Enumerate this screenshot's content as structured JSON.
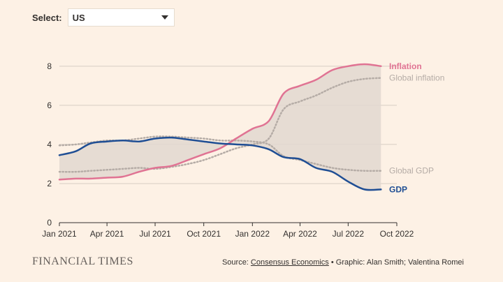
{
  "control": {
    "select_label": "Select:",
    "selected_value": "US"
  },
  "colors": {
    "inflation": "#e07393",
    "gdp": "#1f4e94",
    "global": "#b5aca6",
    "band": "#e2d8d0",
    "axis": "#33302e",
    "grid": "#d7cdc3"
  },
  "chart_data": {
    "type": "line",
    "ylim": [
      0,
      8.6
    ],
    "yticks": [
      0,
      2,
      4,
      6,
      8
    ],
    "xticks": [
      "2021-01-01",
      "2021-04-01",
      "2021-07-01",
      "2021-10-01",
      "2022-01-01",
      "2022-04-01",
      "2022-07-01",
      "2022-10-01"
    ],
    "xtick_labels": [
      "Jan 2021",
      "Apr 2021",
      "Jul 2021",
      "Oct 2021",
      "Jan 2022",
      "Apr 2022",
      "Jul 2022",
      "Oct 2022"
    ],
    "xlim": [
      "2021-01-01",
      "2022-10-01"
    ],
    "grid": "horizontal",
    "series": [
      {
        "name": "Inflation",
        "style": "solid",
        "x": [
          "2021-01-01",
          "2021-02-01",
          "2021-03-01",
          "2021-04-01",
          "2021-05-01",
          "2021-06-01",
          "2021-07-01",
          "2021-08-01",
          "2021-09-01",
          "2021-10-01",
          "2021-11-01",
          "2021-12-01",
          "2022-01-01",
          "2022-02-01",
          "2022-03-01",
          "2022-04-01",
          "2022-05-01",
          "2022-06-01",
          "2022-07-01",
          "2022-08-01",
          "2022-09-01"
        ],
        "values": [
          2.2,
          2.25,
          2.25,
          2.3,
          2.35,
          2.6,
          2.8,
          2.9,
          3.2,
          3.5,
          3.8,
          4.3,
          4.8,
          5.2,
          6.6,
          7.0,
          7.3,
          7.8,
          8.0,
          8.1,
          8.0
        ]
      },
      {
        "name": "Global inflation",
        "style": "dotted",
        "x": [
          "2021-01-01",
          "2021-02-01",
          "2021-03-01",
          "2021-04-01",
          "2021-05-01",
          "2021-06-01",
          "2021-07-01",
          "2021-08-01",
          "2021-09-01",
          "2021-10-01",
          "2021-11-01",
          "2021-12-01",
          "2022-01-01",
          "2022-02-01",
          "2022-03-01",
          "2022-04-01",
          "2022-05-01",
          "2022-06-01",
          "2022-07-01",
          "2022-08-01",
          "2022-09-01"
        ],
        "values": [
          2.6,
          2.6,
          2.65,
          2.7,
          2.75,
          2.8,
          2.75,
          2.85,
          3.0,
          3.2,
          3.5,
          3.8,
          4.0,
          4.3,
          5.8,
          6.2,
          6.5,
          6.9,
          7.2,
          7.35,
          7.4
        ]
      },
      {
        "name": "Global GDP",
        "style": "dotted",
        "x": [
          "2021-01-01",
          "2021-02-01",
          "2021-03-01",
          "2021-04-01",
          "2021-05-01",
          "2021-06-01",
          "2021-07-01",
          "2021-08-01",
          "2021-09-01",
          "2021-10-01",
          "2021-11-01",
          "2021-12-01",
          "2022-01-01",
          "2022-02-01",
          "2022-03-01",
          "2022-04-01",
          "2022-05-01",
          "2022-06-01",
          "2022-07-01",
          "2022-08-01",
          "2022-09-01"
        ],
        "values": [
          3.95,
          4.0,
          4.1,
          4.2,
          4.2,
          4.3,
          4.4,
          4.4,
          4.35,
          4.3,
          4.2,
          4.2,
          4.15,
          4.0,
          3.4,
          3.2,
          3.0,
          2.8,
          2.7,
          2.65,
          2.65
        ]
      },
      {
        "name": "GDP",
        "style": "solid",
        "x": [
          "2021-01-01",
          "2021-02-01",
          "2021-03-01",
          "2021-04-01",
          "2021-05-01",
          "2021-06-01",
          "2021-07-01",
          "2021-08-01",
          "2021-09-01",
          "2021-10-01",
          "2021-11-01",
          "2021-12-01",
          "2022-01-01",
          "2022-02-01",
          "2022-03-01",
          "2022-04-01",
          "2022-05-01",
          "2022-06-01",
          "2022-07-01",
          "2022-08-01",
          "2022-09-01"
        ],
        "values": [
          3.45,
          3.65,
          4.05,
          4.15,
          4.2,
          4.15,
          4.3,
          4.35,
          4.25,
          4.15,
          4.05,
          4.0,
          3.95,
          3.75,
          3.35,
          3.25,
          2.8,
          2.6,
          2.1,
          1.7,
          1.7
        ]
      }
    ],
    "series_labels": [
      "Inflation",
      "Global inflation",
      "Global GDP",
      "GDP"
    ]
  },
  "footer": {
    "brand": "FINANCIAL TIMES",
    "source_prefix": "Source: ",
    "source_link": "Consensus Economics",
    "source_suffix": " • Graphic: Alan Smith; Valentina Romei"
  }
}
